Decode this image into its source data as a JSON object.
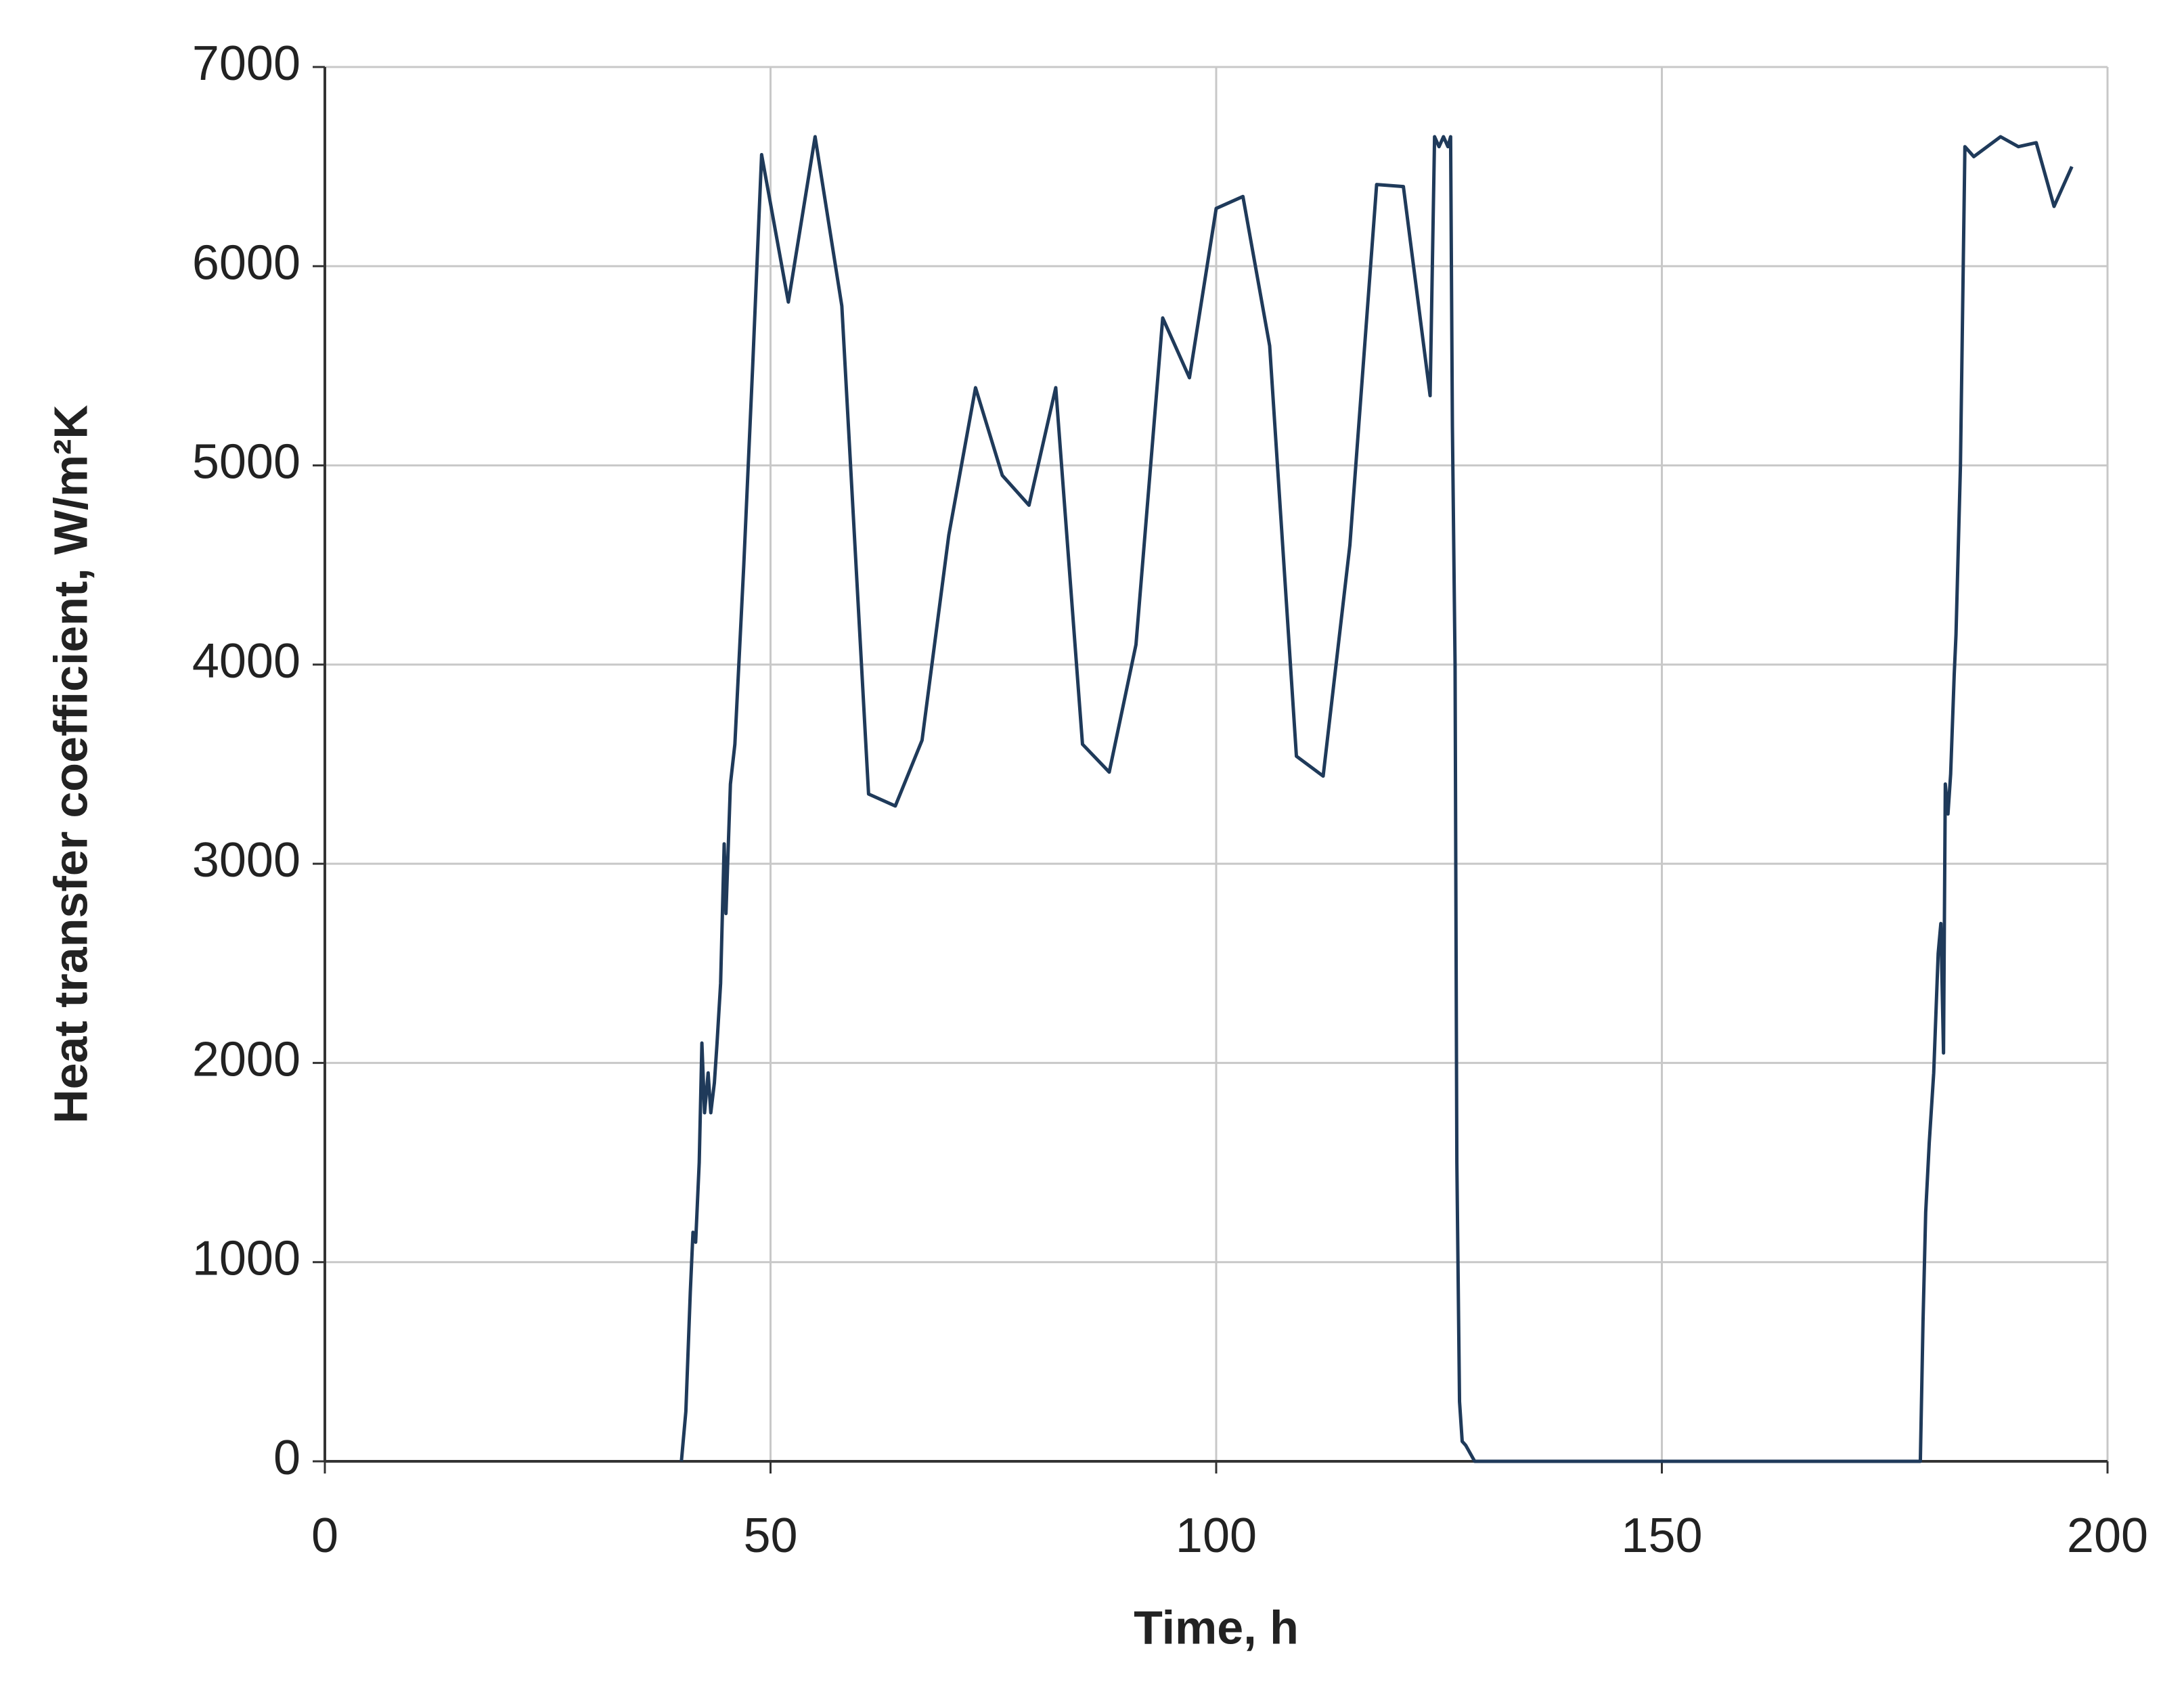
{
  "chart_data": {
    "type": "line",
    "x_label": "Time, h",
    "y_label": "Heat transfer coefficient, W/m²K",
    "xlim": [
      0,
      200
    ],
    "xticks": [
      0,
      50,
      100,
      150,
      200
    ],
    "ylim": [
      0,
      7000
    ],
    "yticks": [
      0,
      1000,
      2000,
      3000,
      4000,
      5000,
      6000,
      7000
    ],
    "grid": true,
    "series": [
      {
        "color": "#1f3a5a",
        "x": [
          40,
          40.5,
          41,
          41.3,
          41.6,
          42,
          42.3,
          42.6,
          43,
          43.3,
          43.7,
          44,
          44.4,
          44.8,
          45,
          45.5,
          46,
          47,
          48,
          49,
          52,
          55,
          58,
          61,
          64,
          67,
          70,
          73,
          76,
          79,
          82,
          85,
          88,
          91,
          94,
          97,
          100,
          103,
          106,
          109,
          112,
          115,
          118,
          121,
          124,
          124.5,
          125,
          125.5,
          126,
          126.3,
          126.5,
          126.8,
          127,
          127.3,
          127.6,
          128,
          129,
          179,
          179.3,
          179.6,
          180,
          180.5,
          181,
          181.3,
          181.6,
          181.8,
          182.1,
          182.4,
          182.8,
          183,
          183.5,
          184,
          185,
          188,
          190,
          192,
          194,
          196
        ],
        "values": [
          0,
          250,
          850,
          1150,
          1100,
          1500,
          2100,
          1750,
          1950,
          1750,
          1900,
          2100,
          2400,
          3100,
          2750,
          3400,
          3600,
          4500,
          5500,
          6560,
          5820,
          6650,
          5800,
          3350,
          3290,
          3620,
          4650,
          5390,
          4950,
          4800,
          5390,
          3600,
          3460,
          4100,
          5740,
          5440,
          6290,
          6350,
          5600,
          3540,
          3440,
          4600,
          6410,
          6400,
          5350,
          6650,
          6600,
          6650,
          6600,
          6650,
          5200,
          4000,
          1500,
          300,
          100,
          80,
          0,
          0,
          700,
          1250,
          1600,
          1950,
          2550,
          2700,
          2050,
          3400,
          3250,
          3450,
          3950,
          4150,
          5000,
          6600,
          6550,
          6650,
          6600,
          6620,
          6300,
          6500
        ]
      }
    ]
  }
}
